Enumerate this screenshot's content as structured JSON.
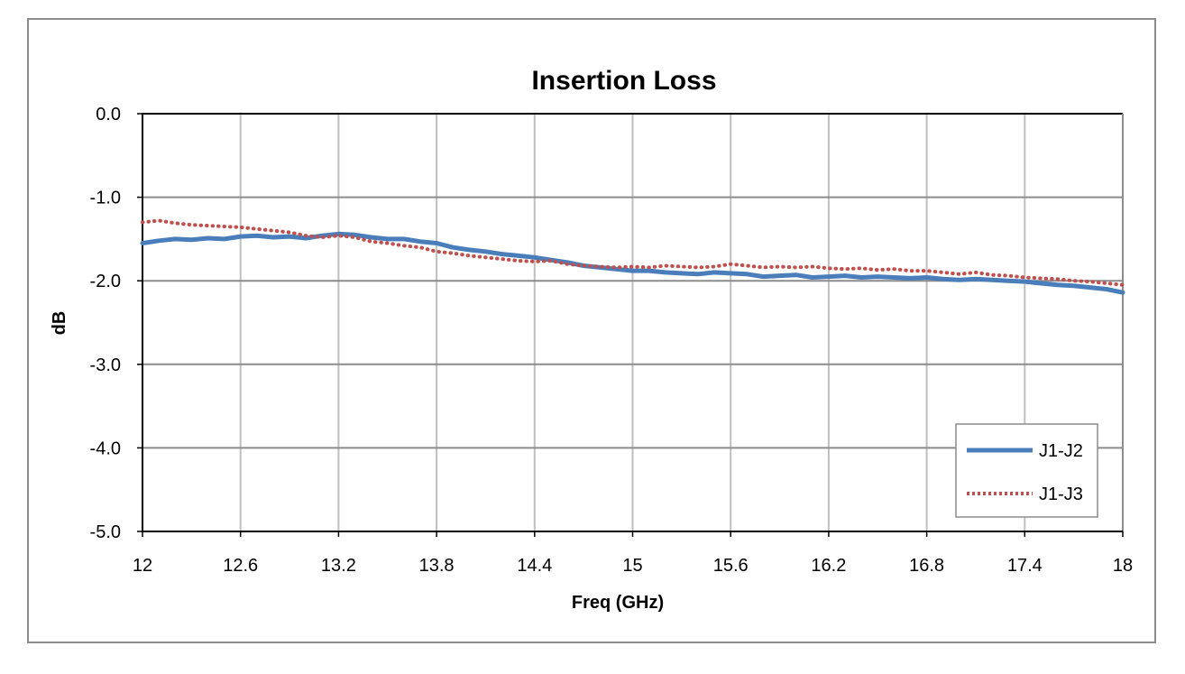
{
  "chart_data": {
    "type": "line",
    "title": "Insertion Loss",
    "xlabel": "Freq (GHz)",
    "ylabel": "dB",
    "xlim": [
      12,
      18
    ],
    "ylim": [
      -5.0,
      0.0
    ],
    "x_ticks": [
      "12",
      "12.6",
      "13.2",
      "13.8",
      "14.4",
      "15",
      "15.6",
      "16.2",
      "16.8",
      "17.4",
      "18"
    ],
    "x_tick_values": [
      12,
      12.6,
      13.2,
      13.8,
      14.4,
      15,
      15.6,
      16.2,
      16.8,
      17.4,
      18
    ],
    "y_ticks": [
      "0.0",
      "-1.0",
      "-2.0",
      "-3.0",
      "-4.0",
      "-5.0"
    ],
    "y_tick_values": [
      0,
      -1,
      -2,
      -3,
      -4,
      -5
    ],
    "grid": true,
    "legend_position": "bottom-right",
    "series": [
      {
        "name": "J1-J2",
        "style": "solid",
        "color": "#4a7ebb",
        "x": [
          12.0,
          12.1,
          12.2,
          12.3,
          12.4,
          12.5,
          12.6,
          12.7,
          12.8,
          12.9,
          13.0,
          13.1,
          13.2,
          13.3,
          13.4,
          13.5,
          13.6,
          13.7,
          13.8,
          13.9,
          14.0,
          14.1,
          14.2,
          14.3,
          14.4,
          14.5,
          14.6,
          14.7,
          14.8,
          14.9,
          15.0,
          15.1,
          15.2,
          15.3,
          15.4,
          15.5,
          15.6,
          15.7,
          15.8,
          15.9,
          16.0,
          16.1,
          16.2,
          16.3,
          16.4,
          16.5,
          16.6,
          16.7,
          16.8,
          16.9,
          17.0,
          17.1,
          17.2,
          17.3,
          17.4,
          17.5,
          17.6,
          17.7,
          17.8,
          17.9,
          18.0
        ],
        "values": [
          -1.55,
          -1.52,
          -1.5,
          -1.51,
          -1.49,
          -1.5,
          -1.47,
          -1.46,
          -1.48,
          -1.47,
          -1.49,
          -1.46,
          -1.44,
          -1.45,
          -1.48,
          -1.5,
          -1.5,
          -1.53,
          -1.55,
          -1.6,
          -1.63,
          -1.65,
          -1.68,
          -1.7,
          -1.72,
          -1.75,
          -1.78,
          -1.82,
          -1.84,
          -1.86,
          -1.88,
          -1.88,
          -1.9,
          -1.91,
          -1.92,
          -1.9,
          -1.91,
          -1.92,
          -1.95,
          -1.94,
          -1.93,
          -1.96,
          -1.95,
          -1.94,
          -1.96,
          -1.95,
          -1.96,
          -1.97,
          -1.96,
          -1.98,
          -1.99,
          -1.98,
          -1.99,
          -2.0,
          -2.01,
          -2.03,
          -2.05,
          -2.06,
          -2.08,
          -2.1,
          -2.14
        ]
      },
      {
        "name": "J1-J3",
        "style": "dotted",
        "color": "#c0504d",
        "x": [
          12.0,
          12.1,
          12.2,
          12.3,
          12.4,
          12.5,
          12.6,
          12.7,
          12.8,
          12.9,
          13.0,
          13.1,
          13.2,
          13.3,
          13.4,
          13.5,
          13.6,
          13.7,
          13.8,
          13.9,
          14.0,
          14.1,
          14.2,
          14.3,
          14.4,
          14.5,
          14.6,
          14.7,
          14.8,
          14.9,
          15.0,
          15.1,
          15.2,
          15.3,
          15.4,
          15.5,
          15.6,
          15.7,
          15.8,
          15.9,
          16.0,
          16.1,
          16.2,
          16.3,
          16.4,
          16.5,
          16.6,
          16.7,
          16.8,
          16.9,
          17.0,
          17.1,
          17.2,
          17.3,
          17.4,
          17.5,
          17.6,
          17.7,
          17.8,
          17.9,
          18.0
        ],
        "values": [
          -1.3,
          -1.28,
          -1.31,
          -1.33,
          -1.34,
          -1.35,
          -1.36,
          -1.38,
          -1.4,
          -1.42,
          -1.46,
          -1.48,
          -1.46,
          -1.48,
          -1.53,
          -1.55,
          -1.58,
          -1.6,
          -1.65,
          -1.67,
          -1.7,
          -1.72,
          -1.74,
          -1.76,
          -1.77,
          -1.76,
          -1.8,
          -1.82,
          -1.83,
          -1.84,
          -1.83,
          -1.84,
          -1.82,
          -1.83,
          -1.84,
          -1.83,
          -1.8,
          -1.82,
          -1.84,
          -1.83,
          -1.84,
          -1.83,
          -1.85,
          -1.86,
          -1.85,
          -1.87,
          -1.86,
          -1.88,
          -1.88,
          -1.9,
          -1.92,
          -1.9,
          -1.93,
          -1.94,
          -1.96,
          -1.97,
          -1.98,
          -2.0,
          -2.01,
          -2.03,
          -2.05
        ]
      }
    ]
  }
}
